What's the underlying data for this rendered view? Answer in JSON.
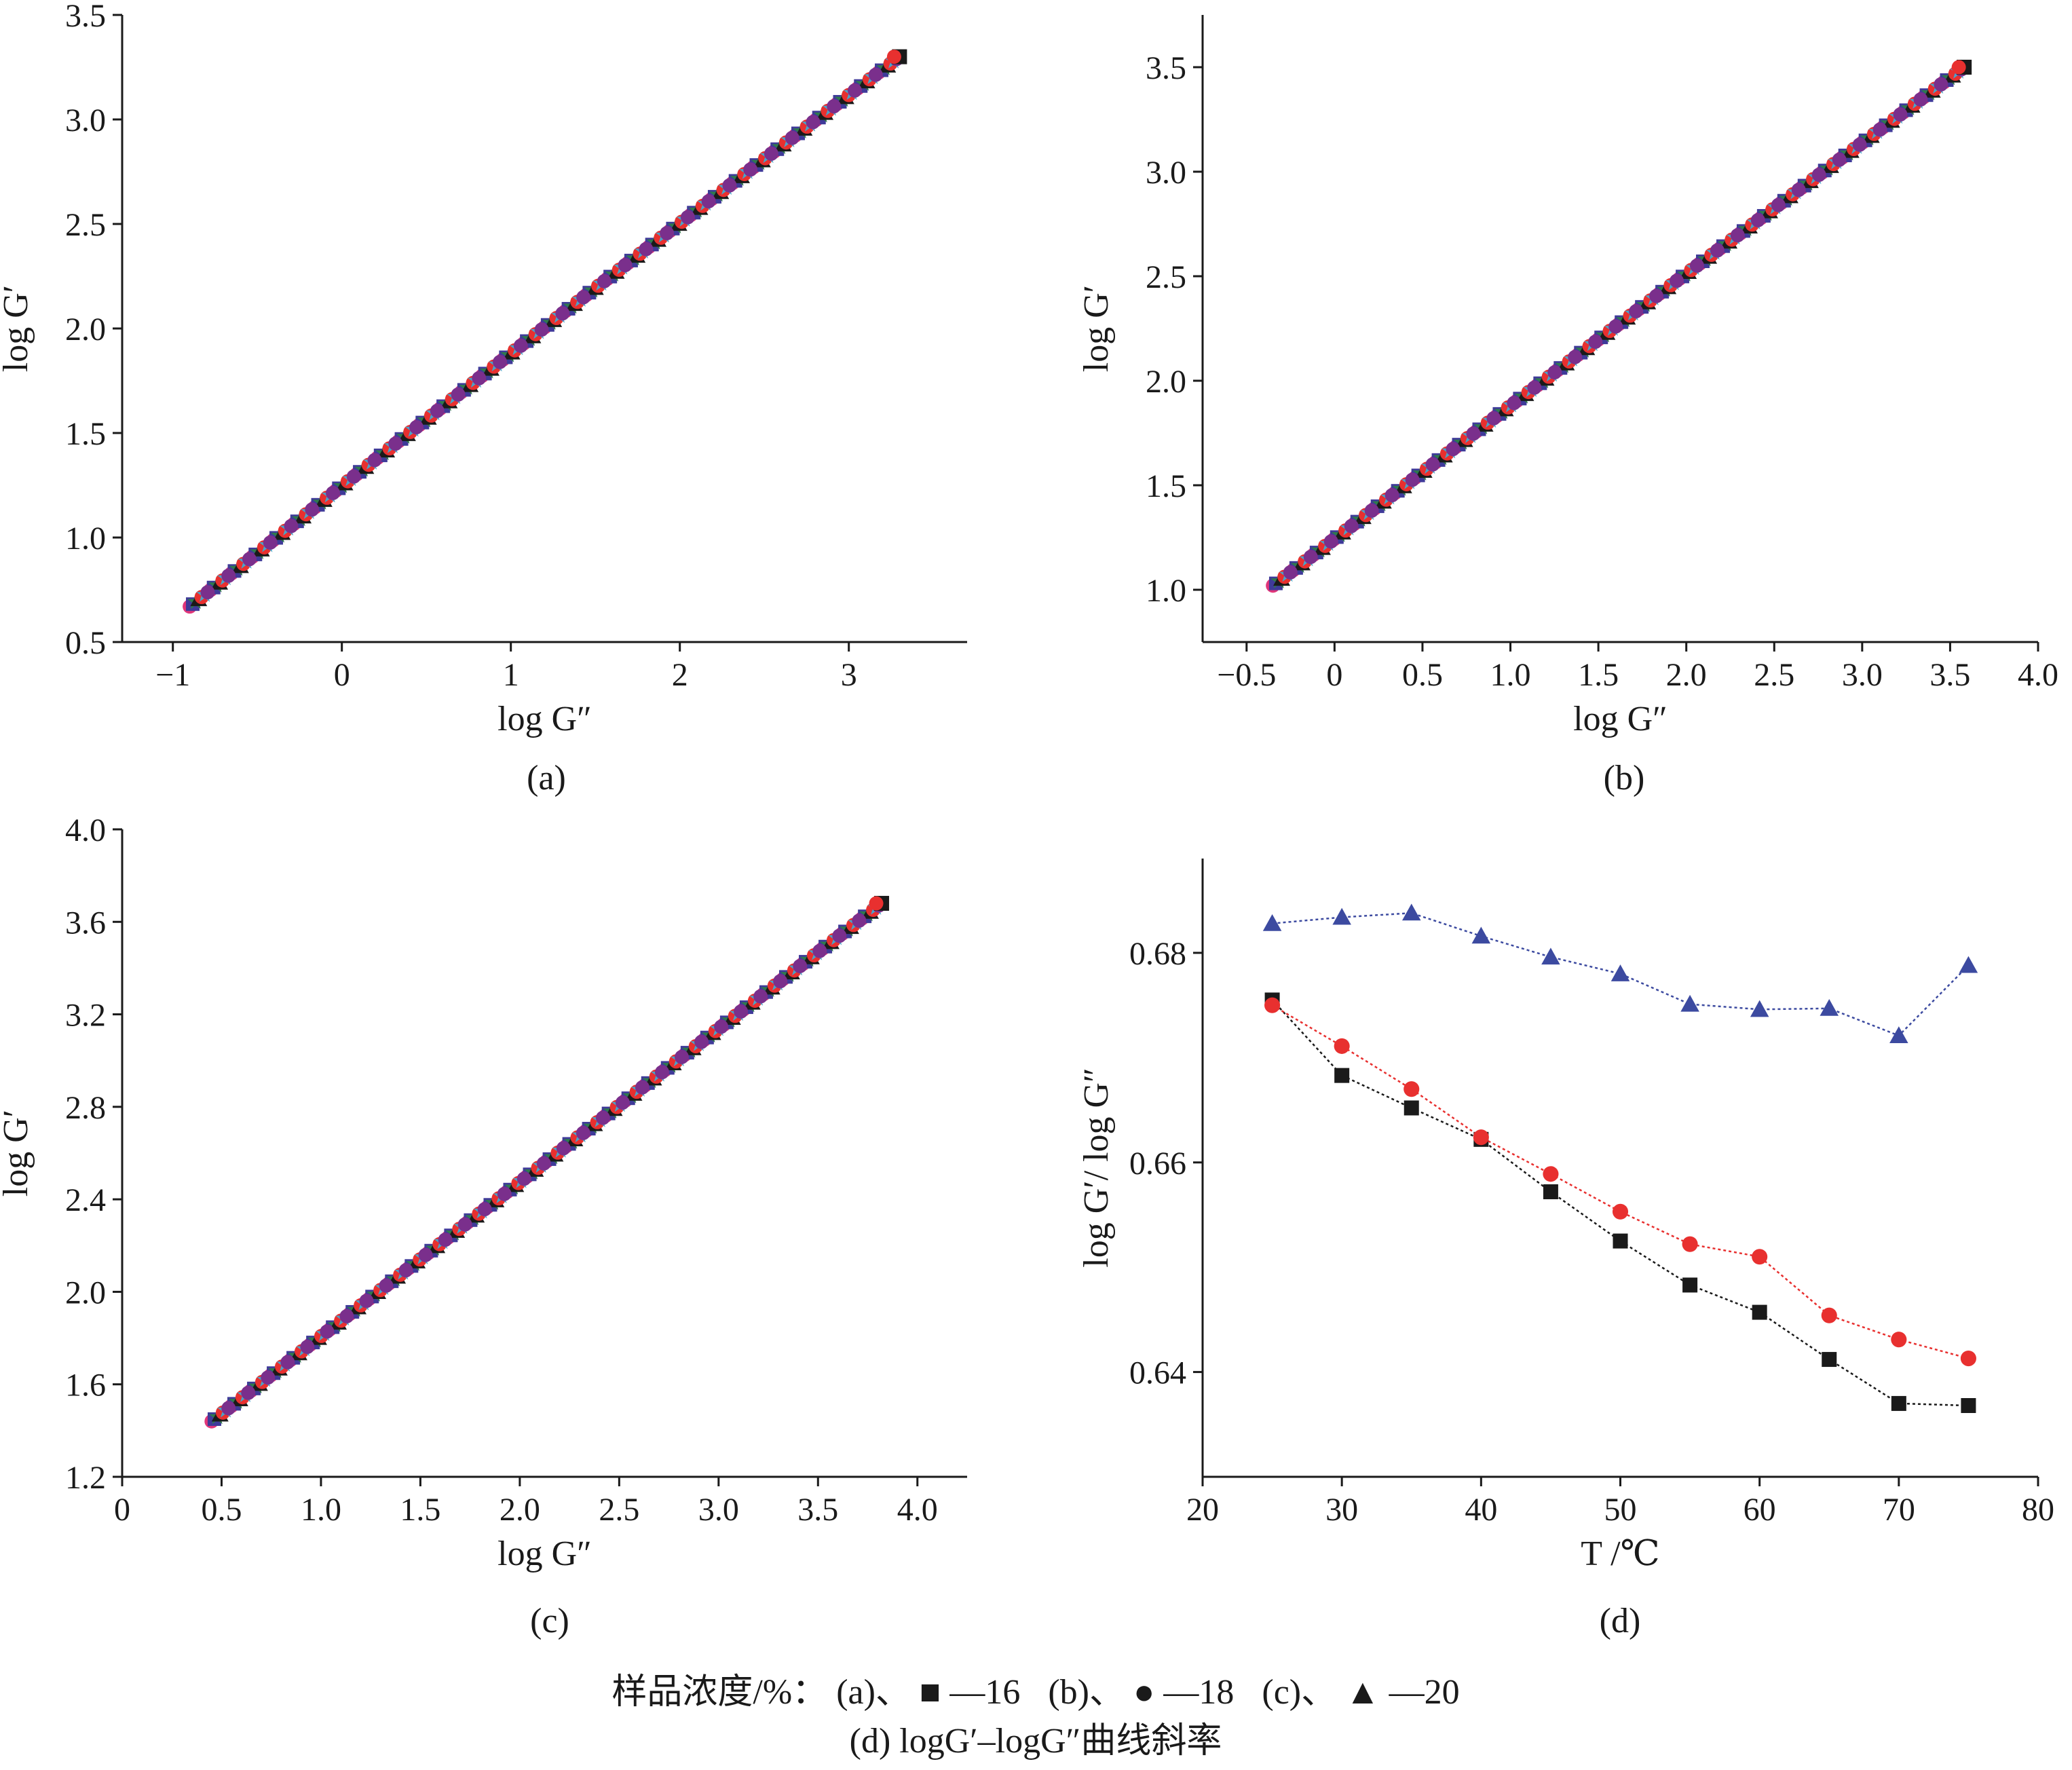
{
  "chart_data": [
    {
      "id": "a",
      "type": "scatter",
      "caption": "(a)",
      "xlabel": "log G″",
      "ylabel": "log G′",
      "xlim": [
        -1.3,
        3.7
      ],
      "ylim": [
        0.5,
        3.5
      ],
      "xticks": [
        -1,
        0,
        1,
        2,
        3
      ],
      "xtick_labels": [
        "−1",
        "0",
        "1",
        "2",
        "3"
      ],
      "yticks": [
        0.5,
        1.0,
        1.5,
        2.0,
        2.5,
        3.0,
        3.5
      ],
      "ytick_labels": [
        "0.5",
        "1.0",
        "1.5",
        "2.0",
        "2.5",
        "3.0",
        "3.5"
      ],
      "grid": false,
      "curve": {
        "x0": -0.9,
        "x1": 3.3,
        "y0": 0.67,
        "y1": 3.3,
        "bend": 0.08
      }
    },
    {
      "id": "b",
      "type": "scatter",
      "caption": "(b)",
      "xlabel": "log G″",
      "ylabel": "log G′",
      "xlim": [
        -0.75,
        4.0
      ],
      "ylim": [
        0.75,
        3.75
      ],
      "xticks": [
        -0.5,
        0,
        0.5,
        1.0,
        1.5,
        2.0,
        2.5,
        3.0,
        3.5,
        4.0
      ],
      "xtick_labels": [
        "−0.5",
        "0",
        "0.5",
        "1.0",
        "1.5",
        "2.0",
        "2.5",
        "3.0",
        "3.5",
        "4.0"
      ],
      "yticks": [
        1.0,
        1.5,
        2.0,
        2.5,
        3.0,
        3.5
      ],
      "ytick_labels": [
        "1.0",
        "1.5",
        "2.0",
        "2.5",
        "3.0",
        "3.5"
      ],
      "grid": false,
      "curve": {
        "x0": -0.35,
        "x1": 3.58,
        "y0": 1.02,
        "y1": 3.5,
        "bend": 0.04
      }
    },
    {
      "id": "c",
      "type": "scatter",
      "caption": "(c)",
      "xlabel": "log G″",
      "ylabel": "log G′",
      "xlim": [
        0,
        4.25
      ],
      "ylim": [
        1.2,
        4.0
      ],
      "xticks": [
        0,
        0.5,
        1.0,
        1.5,
        2.0,
        2.5,
        3.0,
        3.5,
        4.0
      ],
      "xtick_labels": [
        "0",
        "0.5",
        "1.0",
        "1.5",
        "2.0",
        "2.5",
        "3.0",
        "3.5",
        "4.0"
      ],
      "yticks": [
        1.2,
        1.6,
        2.0,
        2.4,
        2.8,
        3.2,
        3.6,
        4.0
      ],
      "ytick_labels": [
        "1.2",
        "1.6",
        "2.0",
        "2.4",
        "2.8",
        "3.2",
        "3.6",
        "4.0"
      ],
      "grid": false,
      "curve": {
        "x0": 0.45,
        "x1": 3.82,
        "y0": 1.44,
        "y1": 3.68,
        "bend": 0.02
      }
    },
    {
      "id": "d",
      "type": "line",
      "caption": "(d)",
      "xlabel": "T /℃",
      "ylabel": "log G′/ log G″",
      "xlim": [
        20,
        80
      ],
      "ylim": [
        0.63,
        0.689
      ],
      "xticks": [
        20,
        30,
        40,
        50,
        60,
        70,
        80
      ],
      "xtick_labels": [
        "20",
        "30",
        "40",
        "50",
        "60",
        "70",
        "80"
      ],
      "yticks": [
        0.64,
        0.66,
        0.68
      ],
      "ytick_labels": [
        "0.64",
        "0.66",
        "0.68"
      ],
      "grid": false,
      "x": [
        25,
        30,
        35,
        40,
        45,
        50,
        55,
        60,
        65,
        70,
        75
      ],
      "series": [
        {
          "marker": "square",
          "color": "#1a1a1a",
          "values": [
            0.6755,
            0.6683,
            0.6652,
            0.6622,
            0.6572,
            0.6525,
            0.6483,
            0.6457,
            0.6412,
            0.637,
            0.6368
          ]
        },
        {
          "marker": "circle",
          "color": "#e8302f",
          "values": [
            0.675,
            0.6711,
            0.667,
            0.6624,
            0.6589,
            0.6553,
            0.6522,
            0.651,
            0.6454,
            0.6431,
            0.6413
          ]
        },
        {
          "marker": "triangle",
          "color": "#3c4aa0",
          "values": [
            0.6828,
            0.6834,
            0.6838,
            0.6816,
            0.6796,
            0.678,
            0.6751,
            0.6746,
            0.6747,
            0.6721,
            0.6788
          ]
        }
      ]
    }
  ],
  "legend": {
    "prefix": "样品浓度/%：",
    "items": [
      {
        "tag": "(a)、",
        "marker": "square",
        "label": "—16"
      },
      {
        "tag": "(b)、",
        "marker": "circle",
        "label": "—18"
      },
      {
        "tag": "(c)、",
        "marker": "triangle",
        "label": "—20"
      }
    ],
    "note": "(d) logG′–logG″曲线斜率"
  }
}
